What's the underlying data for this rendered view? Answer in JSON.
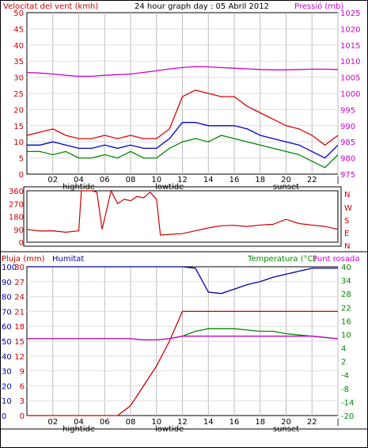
{
  "header": {
    "wind_title": "Velocitat del vent (kmh)",
    "graph_title": "24 hour graph day : 05 Abril 2012",
    "pressure_title": "Pressió (mb)"
  },
  "mid": {
    "dir_letters": [
      "N",
      "W",
      "S",
      "E",
      "N"
    ]
  },
  "bottom": {
    "rain_title": "Pluja (mm)",
    "humidity_title": "Humitat",
    "temp_title": "Temperatura (°C)",
    "dew_title": "Punt rosada"
  },
  "x_tick_labels": [
    "02",
    "04",
    "06",
    "08",
    "10",
    "12",
    "14",
    "16",
    "18",
    "20",
    "22",
    "|"
  ],
  "event_labels": [
    {
      "text": "hightide",
      "hour": 4
    },
    {
      "text": "lowtide",
      "hour": 11
    },
    {
      "text": "sunset",
      "hour": 20
    }
  ],
  "colors": {
    "wind_gust": "#e00000",
    "wind_avg": "#0000cc",
    "wind_min": "#008800",
    "pressure": "#cc00cc",
    "direction": "#cc0000",
    "humidity": "#0000aa",
    "rain": "#cc0000",
    "temperature": "#008800",
    "dew": "#cc00cc",
    "frame": "#000000",
    "grid": "#aaaaaa",
    "axis_left": "#cc0000",
    "axis_right_top": "#cc00cc",
    "axis_right_bottom": "#008800"
  },
  "chart_data": [
    {
      "type": "line",
      "title": "24 hour graph day : 05 Abril 2012",
      "ylabel": "Velocitat del vent (kmh)",
      "ylabel_right": "Pressió (mb)",
      "ylim": [
        0,
        50
      ],
      "ylim_right": [
        975,
        1025
      ],
      "yticks": [
        0,
        5,
        10,
        15,
        20,
        25,
        30,
        35,
        40,
        45,
        50
      ],
      "yticks_right": [
        975,
        980,
        985,
        990,
        995,
        1000,
        1005,
        1010,
        1015,
        1020,
        1025
      ],
      "x": [
        0,
        1,
        2,
        3,
        4,
        5,
        6,
        7,
        8,
        9,
        10,
        11,
        12,
        13,
        14,
        15,
        16,
        17,
        18,
        19,
        20,
        21,
        22,
        23,
        24
      ],
      "series": [
        {
          "name": "gust",
          "values": [
            12,
            13,
            14,
            12,
            11,
            11,
            12,
            11,
            12,
            11,
            11,
            14,
            24,
            26,
            25,
            24,
            24,
            21,
            19,
            17,
            15,
            14,
            12,
            9,
            12
          ]
        },
        {
          "name": "average",
          "values": [
            9,
            9,
            10,
            9,
            8,
            8,
            9,
            8,
            9,
            8,
            8,
            11,
            16,
            16,
            15,
            15,
            15,
            14,
            12,
            11,
            10,
            9,
            7,
            5,
            9
          ]
        },
        {
          "name": "minimum",
          "values": [
            7,
            7,
            6,
            7,
            5,
            5,
            6,
            5,
            7,
            5,
            5,
            8,
            10,
            11,
            10,
            12,
            11,
            10,
            9,
            8,
            7,
            6,
            4,
            2,
            6
          ]
        },
        {
          "name": "pressure",
          "values": [
            1006.5,
            1006.3,
            1006.0,
            1005.6,
            1005.3,
            1005.3,
            1005.6,
            1005.8,
            1006.0,
            1006.5,
            1007.0,
            1007.6,
            1008.0,
            1008.3,
            1008.2,
            1008.0,
            1007.8,
            1007.6,
            1007.4,
            1007.3,
            1007.3,
            1007.4,
            1007.5,
            1007.5,
            1007.4
          ]
        }
      ]
    },
    {
      "type": "line",
      "ylabel": "wind direction",
      "ylim": [
        0,
        360
      ],
      "yticks": [
        0,
        90,
        180,
        270,
        360
      ],
      "x": [
        0,
        1,
        2,
        3,
        4,
        4.2,
        5,
        5.4,
        5.8,
        6.5,
        7,
        7.5,
        8,
        8.5,
        9,
        9.5,
        10,
        10.3,
        11,
        12,
        13,
        14,
        15,
        16,
        17,
        18,
        19,
        20,
        21,
        22,
        23,
        24
      ],
      "series": [
        {
          "name": "direction",
          "values": [
            90,
            78,
            80,
            70,
            80,
            360,
            360,
            350,
            90,
            360,
            270,
            300,
            290,
            320,
            310,
            350,
            300,
            50,
            55,
            60,
            80,
            100,
            115,
            118,
            110,
            120,
            125,
            160,
            130,
            120,
            110,
            90
          ]
        }
      ]
    },
    {
      "type": "line",
      "ylabel": "Pluja (mm)",
      "ylabel_right": "Temperatura (°C)",
      "ylim_left_rain": [
        0,
        30
      ],
      "ylim_left_humidity": [
        0,
        100
      ],
      "ylim_right": [
        -20,
        40
      ],
      "yticks_rain": [
        0,
        3,
        6,
        9,
        12,
        15,
        18,
        21,
        24,
        27,
        30
      ],
      "yticks_humidity": [
        0,
        10,
        20,
        30,
        40,
        50,
        60,
        70,
        80,
        90,
        100
      ],
      "yticks_right": [
        -20,
        -14,
        -8,
        -4,
        2,
        4,
        10,
        16,
        22,
        28,
        34,
        40
      ],
      "x": [
        0,
        1,
        2,
        3,
        4,
        5,
        6,
        7,
        8,
        9,
        10,
        11,
        12,
        13,
        14,
        15,
        16,
        17,
        18,
        19,
        20,
        21,
        22,
        23,
        24
      ],
      "series": [
        {
          "name": "Pluja (mm)",
          "values": [
            0,
            0,
            0,
            0,
            0,
            0,
            0,
            0,
            2,
            6,
            10,
            15,
            21,
            21,
            21,
            21,
            21,
            21,
            21,
            21,
            21,
            21,
            21,
            21,
            21
          ]
        },
        {
          "name": "Humitat",
          "values": [
            100,
            100,
            100,
            100,
            100,
            100,
            100,
            100,
            100,
            100,
            100,
            100,
            100,
            99,
            83,
            82,
            85,
            88,
            90,
            93,
            95,
            97,
            99,
            99,
            99
          ]
        },
        {
          "name": "Temperatura (°C)",
          "values": [
            11,
            11,
            11,
            11,
            11,
            11,
            11,
            11,
            11,
            10.5,
            10.5,
            11,
            12,
            14,
            15,
            15,
            15,
            14.5,
            14,
            14,
            13,
            12.5,
            12,
            11.5,
            11
          ]
        },
        {
          "name": "Punt rosada",
          "values": [
            11,
            11,
            11,
            11,
            11,
            11,
            11,
            11,
            11,
            10.5,
            10.5,
            11,
            12,
            12,
            12,
            12,
            12,
            12,
            12,
            12,
            12,
            12,
            12,
            11.5,
            11
          ]
        }
      ]
    }
  ]
}
